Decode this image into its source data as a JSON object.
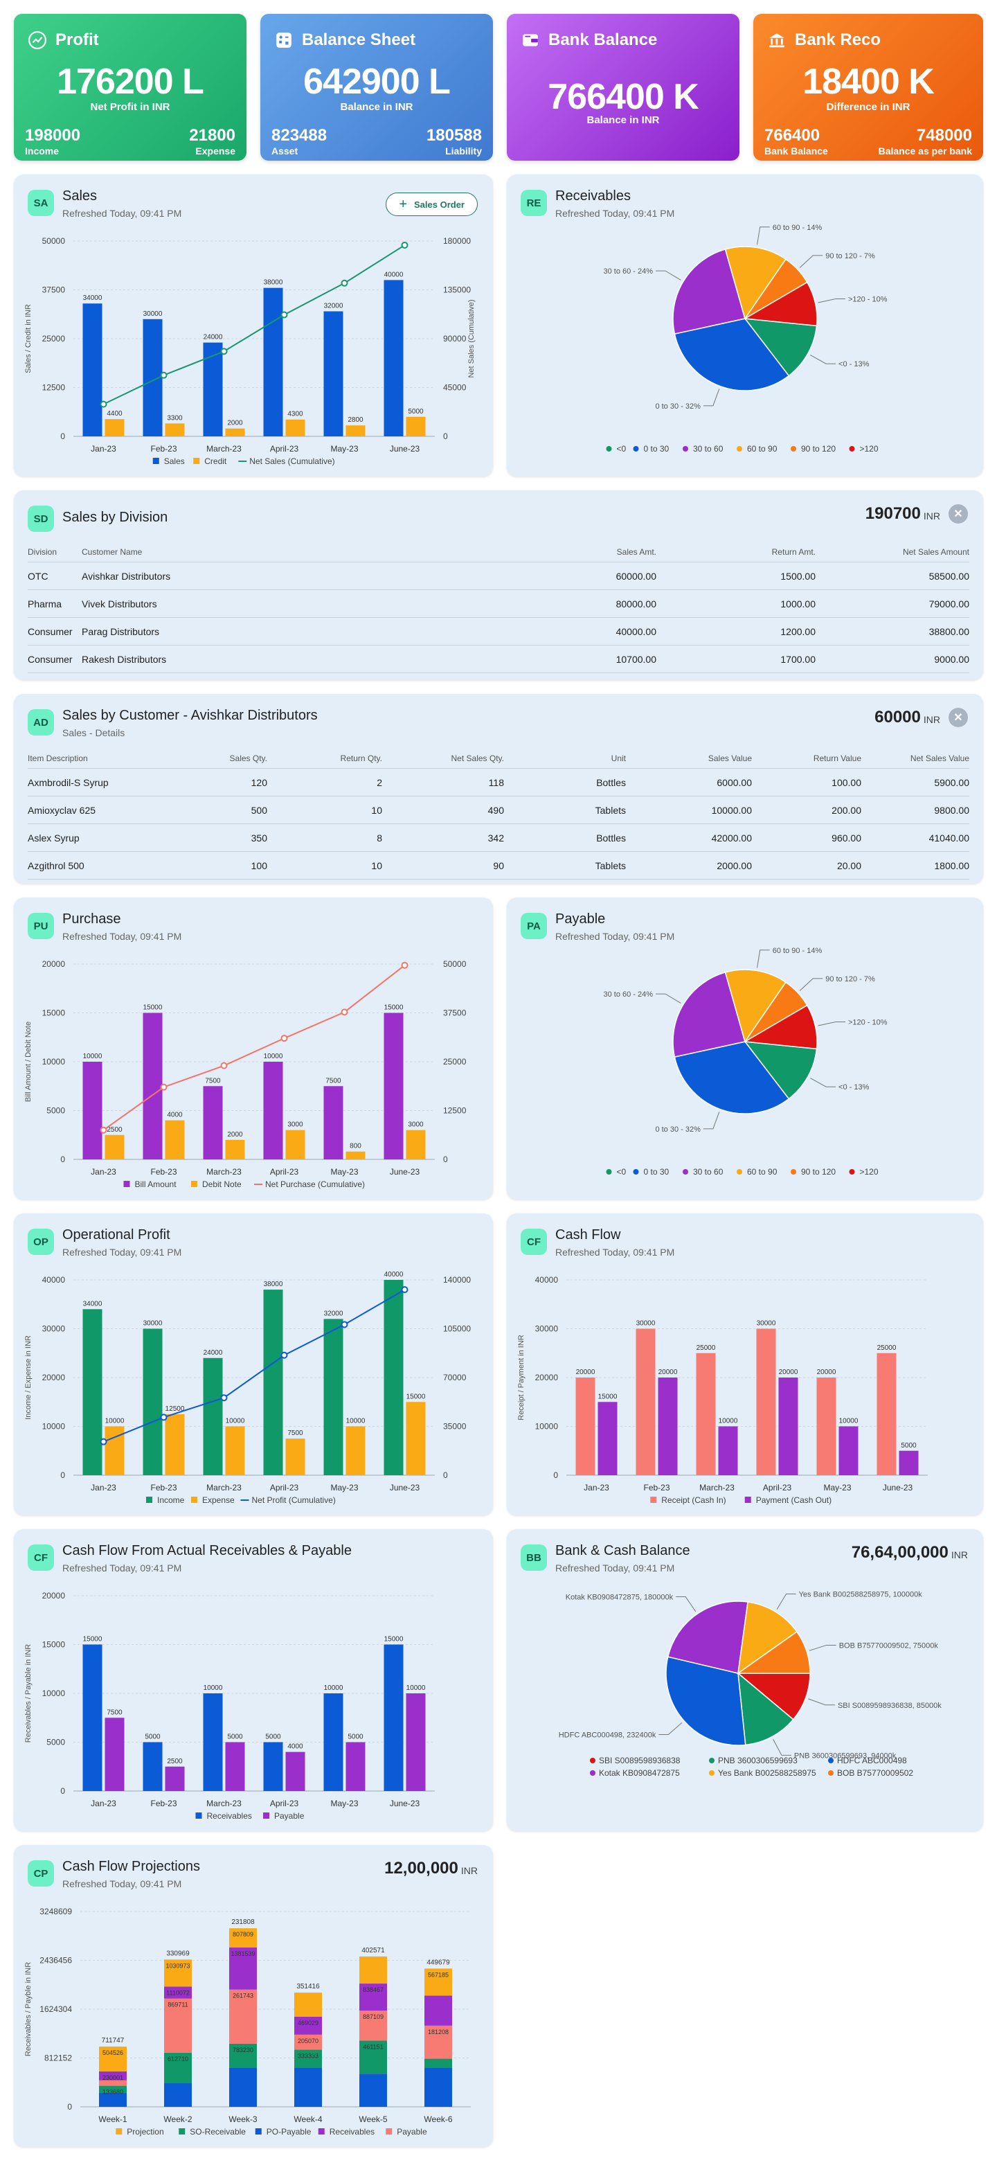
{
  "kpis": [
    {
      "id": "profit",
      "title": "Profit",
      "icon": "trending-up-icon",
      "value": "176200 L",
      "sub": "Net Profit in INR",
      "left_value": "198000",
      "left_label": "Income",
      "right_value": "21800",
      "right_label": "Expense",
      "color1": "#3ed08a",
      "color2": "#1aa86a"
    },
    {
      "id": "balance-sheet",
      "title": "Balance Sheet",
      "icon": "calculator-icon",
      "value": "642900 L",
      "sub": "Balance in INR",
      "left_value": "823488",
      "left_label": "Asset",
      "right_value": "180588",
      "right_label": "Liability",
      "color1": "#68a6ea",
      "color2": "#3f7ad0"
    },
    {
      "id": "bank-balance",
      "title": "Bank Balance",
      "icon": "wallet-icon",
      "value": "766400 K",
      "sub": "Balance in INR",
      "left_value": "",
      "left_label": "",
      "right_value": "",
      "right_label": "",
      "color1": "#c26ff5",
      "color2": "#8a1fcb"
    },
    {
      "id": "bank-reco",
      "title": "Bank Reco",
      "icon": "bank-icon",
      "value": "18400 K",
      "sub": "Difference in INR",
      "left_value": "766400",
      "left_label": "Bank Balance",
      "right_value": "748000",
      "right_label": "Balance as per bank",
      "color1": "#fb8a2c",
      "color2": "#ea5a0c"
    }
  ],
  "sales": {
    "badge": "SA",
    "title": "Sales",
    "sub": "Refreshed Today, 09:41 PM",
    "button": "Sales Order"
  },
  "receivables": {
    "badge": "RE",
    "title": "Receivables",
    "sub": "Refreshed Today, 09:41 PM"
  },
  "sales_division": {
    "badge": "SD",
    "title": "Sales by Division",
    "total": "190700",
    "unit": "INR",
    "headers": [
      "Division",
      "Customer Name",
      "Sales Amt.",
      "Return Amt.",
      "Net Sales Amount"
    ],
    "rows": [
      [
        "OTC",
        "Avishkar Distributors",
        "60000.00",
        "1500.00",
        "58500.00"
      ],
      [
        "Pharma",
        "Vivek Distributors",
        "80000.00",
        "1000.00",
        "79000.00"
      ],
      [
        "Consumer",
        "Parag Distributors",
        "40000.00",
        "1200.00",
        "38800.00"
      ],
      [
        "Consumer",
        "Rakesh Distributors",
        "10700.00",
        "1700.00",
        "9000.00"
      ]
    ]
  },
  "sales_customer": {
    "badge": "AD",
    "title": "Sales by Customer - Avishkar Distributors",
    "sub": "Sales - Details",
    "total": "60000",
    "unit": "INR",
    "headers": [
      "Item Description",
      "Sales Qty.",
      "Return Qty.",
      "Net Sales Qty.",
      "Unit",
      "Sales Value",
      "Return Value",
      "Net Sales Value"
    ],
    "rows": [
      [
        "Axmbrodil-S Syrup",
        "120",
        "2",
        "118",
        "Bottles",
        "6000.00",
        "100.00",
        "5900.00"
      ],
      [
        "Amioxyclav 625",
        "500",
        "10",
        "490",
        "Tablets",
        "10000.00",
        "200.00",
        "9800.00"
      ],
      [
        "Aslex Syrup",
        "350",
        "8",
        "342",
        "Bottles",
        "42000.00",
        "960.00",
        "41040.00"
      ],
      [
        "Azgithrol 500",
        "100",
        "10",
        "90",
        "Tablets",
        "2000.00",
        "20.00",
        "1800.00"
      ]
    ]
  },
  "purchase": {
    "badge": "PU",
    "title": "Purchase",
    "sub": "Refreshed Today, 09:41 PM"
  },
  "payable": {
    "badge": "PA",
    "title": "Payable",
    "sub": "Refreshed Today, 09:41 PM"
  },
  "op_profit": {
    "badge": "OP",
    "title": "Operational Profit",
    "sub": "Refreshed Today, 09:41 PM"
  },
  "cash_flow": {
    "badge": "CF",
    "title": "Cash Flow",
    "sub": "Refreshed Today, 09:41 PM"
  },
  "cf_actual": {
    "badge": "CF",
    "title": "Cash Flow From Actual Receivables & Payable",
    "sub": "Refreshed Today, 09:41 PM"
  },
  "bank_cash": {
    "badge": "BB",
    "title": "Bank & Cash Balance",
    "sub": "Refreshed Today, 09:41 PM",
    "total": "76,64,00,000",
    "unit": "INR"
  },
  "projections": {
    "badge": "CP",
    "title": "Cash Flow Projections",
    "sub": "Refreshed Today, 09:41 PM",
    "total": "12,00,000",
    "unit": "INR"
  },
  "chart_data": [
    {
      "id": "sales",
      "type": "bar",
      "categories": [
        "Jan-23",
        "Feb-23",
        "March-23",
        "April-23",
        "May-23",
        "June-23"
      ],
      "series": [
        {
          "name": "Sales",
          "color": "#0b5ad6",
          "values": [
            34000,
            30000,
            24000,
            38000,
            32000,
            40000
          ]
        },
        {
          "name": "Credit",
          "color": "#f9aa15",
          "values": [
            4400,
            3300,
            2000,
            4300,
            2800,
            5000
          ]
        }
      ],
      "line": {
        "name": "Net Sales (Cumulative)",
        "color": "#179770",
        "values": [
          29600,
          56300,
          78300,
          112000,
          141200,
          176200
        ]
      },
      "ylim": [
        0,
        50000
      ],
      "yticks": [
        "0",
        "12500",
        "25000",
        "37500",
        "50000"
      ],
      "y2lim": [
        0,
        180000
      ],
      "y2ticks": [
        "0",
        "45000",
        "90000",
        "135000",
        "180000"
      ],
      "ylabel": "Sales / Credit in INR",
      "y2label": "Net Sales (Cumulative)"
    },
    {
      "id": "receivables",
      "type": "pie",
      "labels": [
        "<0",
        "0 to 30",
        "30 to 60",
        "60 to 90",
        "90 to 120",
        ">120"
      ],
      "slice_labels": [
        "<0 - 13%",
        "0 to 30 - 32%",
        "30 to 60 - 24%",
        "60 to 90 - 14%",
        "90 to 120 - 7%",
        ">120 - 10%"
      ],
      "values": [
        13,
        32,
        24,
        14,
        7,
        10
      ],
      "colors": [
        "#109868",
        "#0b5ad6",
        "#9a2fcc",
        "#f9aa15",
        "#f77a14",
        "#dc1414"
      ]
    },
    {
      "id": "purchase",
      "type": "bar",
      "categories": [
        "Jan-23",
        "Feb-23",
        "March-23",
        "April-23",
        "May-23",
        "June-23"
      ],
      "series": [
        {
          "name": "Bill Amount",
          "color": "#9a2fcc",
          "values": [
            10000,
            15000,
            7500,
            10000,
            7500,
            15000
          ]
        },
        {
          "name": "Debit Note",
          "color": "#f9aa15",
          "values": [
            2500,
            4000,
            2000,
            3000,
            800,
            3000
          ]
        }
      ],
      "line": {
        "name": "Net Purchase (Cumulative)",
        "color": "#f4746a",
        "values": [
          7500,
          18500,
          24000,
          31000,
          37700,
          49700
        ]
      },
      "ylim": [
        0,
        20000
      ],
      "yticks": [
        "0",
        "5000",
        "10000",
        "15000",
        "20000"
      ],
      "y2lim": [
        0,
        50000
      ],
      "y2ticks": [
        "0",
        "12500",
        "25000",
        "37500",
        "50000"
      ],
      "ylabel": "Bill Amount / Debit Note",
      "y2label": ""
    },
    {
      "id": "payable",
      "type": "pie",
      "labels": [
        "<0",
        "0 to 30",
        "30 to 60",
        "60 to 90",
        "90 to 120",
        ">120"
      ],
      "slice_labels": [
        "<0 - 13%",
        "0 to 30 - 32%",
        "30 to 60 - 24%",
        "60 to 90 - 14%",
        "90 to 120 - 7%",
        ">120 - 10%"
      ],
      "values": [
        13,
        32,
        24,
        14,
        7,
        10
      ],
      "colors": [
        "#109868",
        "#0b5ad6",
        "#9a2fcc",
        "#f9aa15",
        "#f77a14",
        "#dc1414"
      ]
    },
    {
      "id": "op_profit",
      "type": "bar",
      "categories": [
        "Jan-23",
        "Feb-23",
        "March-23",
        "April-23",
        "May-23",
        "June-23"
      ],
      "series": [
        {
          "name": "Income",
          "color": "#109868",
          "values": [
            34000,
            30000,
            24000,
            38000,
            32000,
            40000
          ]
        },
        {
          "name": "Expense",
          "color": "#f9aa15",
          "values": [
            10000,
            12500,
            10000,
            7500,
            10000,
            15000
          ]
        }
      ],
      "line": {
        "name": "Net Profit (Cumulative)",
        "color": "#0b5ad6",
        "values": [
          24000,
          41500,
          55500,
          86000,
          108000,
          133000
        ]
      },
      "ylim": [
        0,
        40000
      ],
      "yticks": [
        "0",
        "10000",
        "20000",
        "30000",
        "40000"
      ],
      "y2lim": [
        0,
        140000
      ],
      "y2ticks": [
        "0",
        "35000",
        "70000",
        "105000",
        "140000"
      ],
      "ylabel": "Income / Expense in INR",
      "y2label": ""
    },
    {
      "id": "cash_flow",
      "type": "bar",
      "categories": [
        "Jan-23",
        "Feb-23",
        "March-23",
        "April-23",
        "May-23",
        "June-23"
      ],
      "series": [
        {
          "name": "Receipt (Cash In)",
          "color": "#f77b72",
          "values": [
            20000,
            30000,
            25000,
            30000,
            20000,
            25000
          ]
        },
        {
          "name": "Payment (Cash Out)",
          "color": "#9a2fcc",
          "values": [
            15000,
            20000,
            10000,
            20000,
            10000,
            5000
          ]
        }
      ],
      "ylim": [
        0,
        40000
      ],
      "yticks": [
        "0",
        "10000",
        "20000",
        "30000",
        "40000"
      ],
      "ylabel": "Receipt / Payment in INR"
    },
    {
      "id": "cf_actual",
      "type": "bar",
      "categories": [
        "Jan-23",
        "Feb-23",
        "March-23",
        "April-23",
        "May-23",
        "June-23"
      ],
      "series": [
        {
          "name": "Receivables",
          "color": "#0b5ad6",
          "values": [
            15000,
            5000,
            10000,
            5000,
            10000,
            15000
          ]
        },
        {
          "name": "Payable",
          "color": "#9a2fcc",
          "values": [
            7500,
            2500,
            5000,
            4000,
            5000,
            10000
          ]
        }
      ],
      "ylim": [
        0,
        20000
      ],
      "yticks": [
        "0",
        "5000",
        "10000",
        "15000",
        "20000"
      ],
      "ylabel": "Receivables / Payable in INR"
    },
    {
      "id": "bank_cash",
      "type": "pie",
      "labels": [
        "SBI S0089598936838",
        "PNB 3600306599693",
        "HDFC ABC000498",
        "Kotak KB0908472875",
        "Yes Bank B002588258975",
        "BOB B75770009502"
      ],
      "slice_labels": [
        "SBI S0089598936838, 85000k",
        "PNB 3600306599693, 94000k",
        "HDFC ABC000498, 232400k",
        "Kotak KB0908472875, 180000k",
        "Yes Bank B002588258975, 100000k",
        "BOB B75770009502, 75000k"
      ],
      "values": [
        85000,
        94000,
        232400,
        180000,
        100000,
        75000
      ],
      "colors": [
        "#dc1414",
        "#109868",
        "#0b5ad6",
        "#9a2fcc",
        "#f9aa15",
        "#f77a14"
      ]
    },
    {
      "id": "projections",
      "type": "stacked-bar",
      "categories": [
        "Week-1",
        "Week-2",
        "Week-3",
        "Week-4",
        "Week-5",
        "Week-6"
      ],
      "totals": [
        "711747",
        "330969",
        "231808",
        "351416",
        "402571",
        "449679"
      ],
      "series": [
        {
          "name": "Projection",
          "color": "#f9aa15"
        },
        {
          "name": "SO-Receivable",
          "color": "#109868"
        },
        {
          "name": "PO-Payable",
          "color": "#0b5ad6"
        },
        {
          "name": "Receivables",
          "color": "#9a2fcc"
        },
        {
          "name": "Payable",
          "color": "#f77b72"
        }
      ],
      "stacks": [
        [
          {
            "s": 2,
            "v": 230000,
            "l": ""
          },
          {
            "s": 1,
            "v": 120000,
            "l": "133680"
          },
          {
            "s": 4,
            "v": 90000,
            "l": ""
          },
          {
            "s": 3,
            "v": 150000,
            "l": "230001"
          },
          {
            "s": 0,
            "v": 411747,
            "l": "504526"
          }
        ],
        [
          {
            "s": 2,
            "v": 400000,
            "l": ""
          },
          {
            "s": 1,
            "v": 500000,
            "l": "612710"
          },
          {
            "s": 4,
            "v": 900000,
            "l": "869711"
          },
          {
            "s": 3,
            "v": 200000,
            "l": "1110072"
          },
          {
            "s": 0,
            "v": 450000,
            "l": "1030973"
          }
        ],
        [
          {
            "s": 2,
            "v": 650000,
            "l": ""
          },
          {
            "s": 1,
            "v": 400000,
            "l": "783230"
          },
          {
            "s": 4,
            "v": 900000,
            "l": "261743"
          },
          {
            "s": 3,
            "v": 700000,
            "l": "1381539"
          },
          {
            "s": 0,
            "v": 320000,
            "l": "807809"
          }
        ],
        [
          {
            "s": 2,
            "v": 650000,
            "l": ""
          },
          {
            "s": 1,
            "v": 300000,
            "l": "333333"
          },
          {
            "s": 4,
            "v": 250000,
            "l": "205070"
          },
          {
            "s": 3,
            "v": 300000,
            "l": "469029"
          },
          {
            "s": 0,
            "v": 400000,
            "l": ""
          }
        ],
        [
          {
            "s": 2,
            "v": 550000,
            "l": ""
          },
          {
            "s": 1,
            "v": 550000,
            "l": "461151"
          },
          {
            "s": 4,
            "v": 500000,
            "l": "887109"
          },
          {
            "s": 3,
            "v": 450000,
            "l": "838467"
          },
          {
            "s": 0,
            "v": 450000,
            "l": ""
          }
        ],
        [
          {
            "s": 2,
            "v": 650000,
            "l": ""
          },
          {
            "s": 1,
            "v": 150000,
            "l": ""
          },
          {
            "s": 4,
            "v": 550000,
            "l": "181208"
          },
          {
            "s": 3,
            "v": 500000,
            "l": ""
          },
          {
            "s": 0,
            "v": 450000,
            "l": "567185"
          }
        ]
      ],
      "ylim": [
        0,
        3248609
      ],
      "yticks": [
        "0",
        "812152",
        "1624304",
        "2436456",
        "3248609"
      ],
      "ylabel": "Receivables / Payble in INR"
    }
  ]
}
